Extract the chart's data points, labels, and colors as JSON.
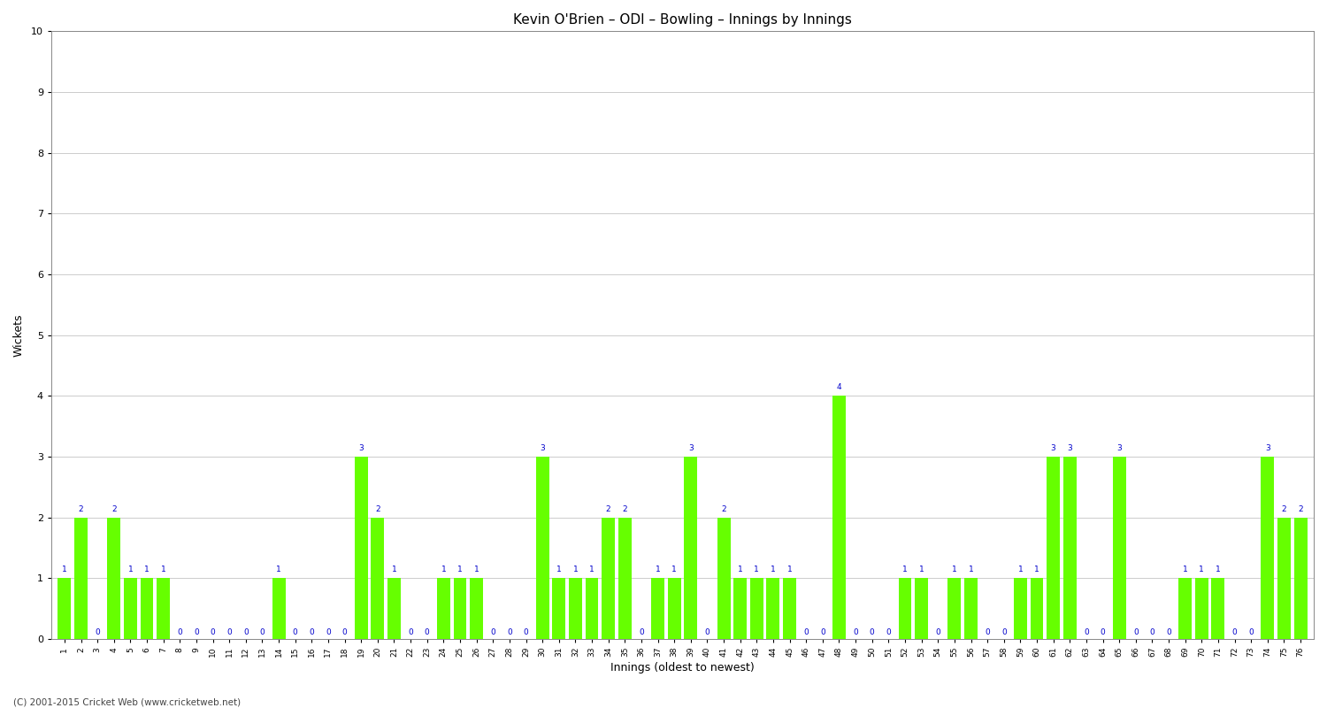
{
  "title": "Kevin O'Brien – ODI – Bowling – Innings by Innings",
  "xlabel": "Innings (oldest to newest)",
  "ylabel": "Wickets",
  "ylim": [
    0,
    10
  ],
  "yticks": [
    0,
    1,
    2,
    3,
    4,
    5,
    6,
    7,
    8,
    9,
    10
  ],
  "bar_color": "#66ff00",
  "background_color": "#ffffff",
  "label_color": "#0000cc",
  "footer": "(C) 2001-2015 Cricket Web (www.cricketweb.net)",
  "wickets": [
    1,
    2,
    0,
    2,
    1,
    1,
    1,
    0,
    0,
    0,
    0,
    0,
    0,
    1,
    0,
    0,
    0,
    0,
    3,
    2,
    1,
    0,
    0,
    1,
    1,
    1,
    0,
    0,
    0,
    3,
    1,
    1,
    1,
    2,
    2,
    0,
    1,
    1,
    3,
    0,
    2,
    1,
    1,
    1,
    1,
    0,
    0,
    4,
    0,
    0,
    0,
    1,
    1,
    0,
    1,
    1,
    0,
    0,
    1,
    1,
    3,
    3,
    0,
    0,
    3,
    0,
    0,
    0,
    1,
    1,
    1,
    0,
    0,
    3,
    2,
    2
  ]
}
